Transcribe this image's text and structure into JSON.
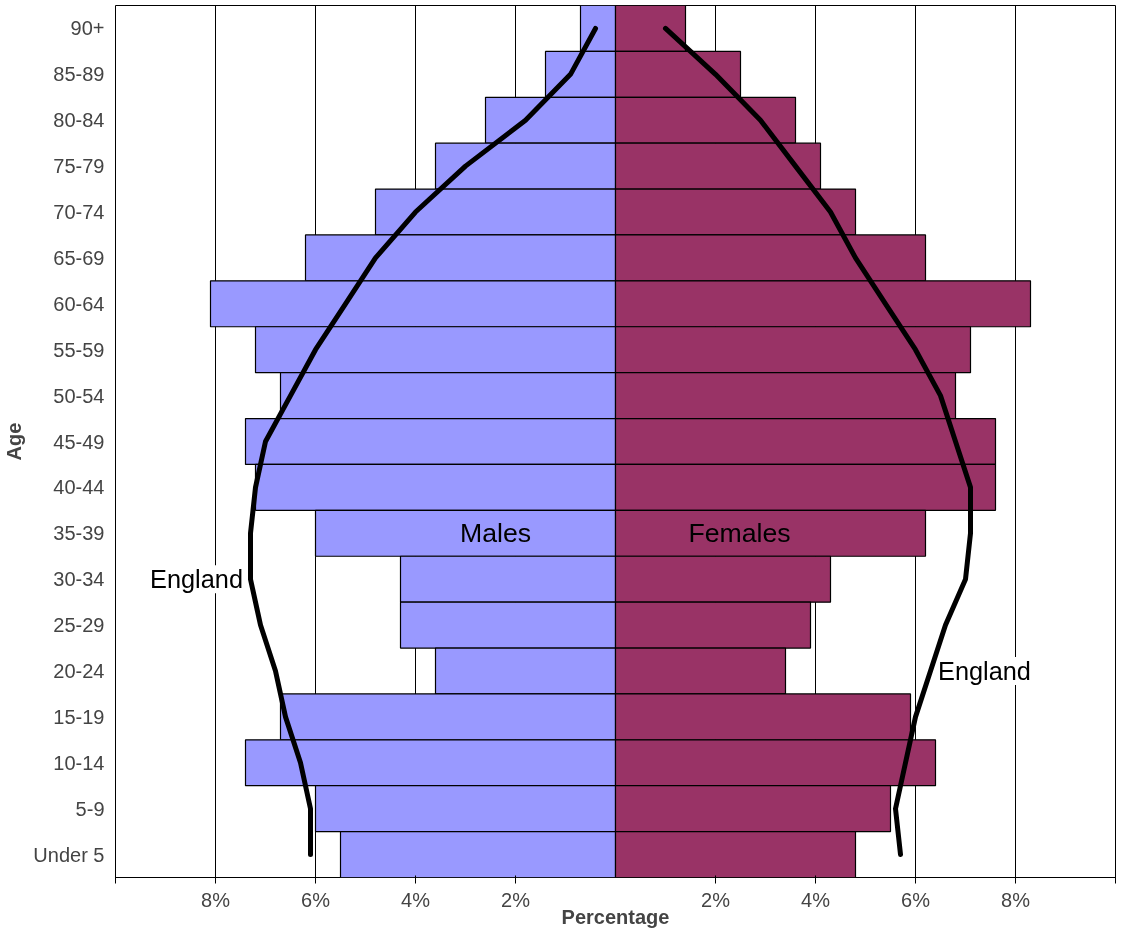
{
  "chart_data": {
    "type": "bar",
    "orientation": "horizontal",
    "xlabel": "Percentage",
    "ylabel": "Age",
    "grid": "x",
    "xlim": [
      -10,
      10
    ],
    "xticks": [
      {
        "value": -10,
        "label": null
      },
      {
        "value": -8,
        "label": "8%"
      },
      {
        "value": -6,
        "label": "6%"
      },
      {
        "value": -4,
        "label": "4%"
      },
      {
        "value": -2,
        "label": "2%"
      },
      {
        "value": 2,
        "label": "2%"
      },
      {
        "value": 4,
        "label": "4%"
      },
      {
        "value": 6,
        "label": "6%"
      },
      {
        "value": 8,
        "label": "8%"
      },
      {
        "value": 10,
        "label": null
      }
    ],
    "categories": [
      "90+",
      "85-89",
      "80-84",
      "75-79",
      "70-74",
      "65-69",
      "60-64",
      "55-59",
      "50-54",
      "45-49",
      "40-44",
      "35-39",
      "30-34",
      "25-29",
      "20-24",
      "15-19",
      "10-14",
      "5-9",
      "Under 5"
    ],
    "series": [
      {
        "name": "Males",
        "color": "#9999ff",
        "values": [
          -0.7,
          -1.4,
          -2.6,
          -3.6,
          -4.8,
          -6.2,
          -8.1,
          -7.2,
          -6.7,
          -7.4,
          -7.2,
          -6.0,
          -4.3,
          -4.3,
          -3.6,
          -6.7,
          -7.4,
          -6.0,
          -5.5
        ]
      },
      {
        "name": "Females",
        "color": "#993366",
        "values": [
          1.4,
          2.5,
          3.6,
          4.1,
          4.8,
          6.2,
          8.3,
          7.1,
          6.8,
          7.6,
          7.6,
          6.2,
          4.3,
          3.9,
          3.4,
          5.9,
          6.4,
          5.5,
          4.8
        ]
      },
      {
        "type": "line",
        "name": "England",
        "color": "#000000",
        "values": [
          -0.4,
          -0.9,
          -1.8,
          -3.0,
          -4.0,
          -4.8,
          -5.4,
          -6.0,
          -6.5,
          -7.0,
          -7.2,
          -7.3,
          -7.3,
          -7.1,
          -6.8,
          -6.6,
          -6.3,
          -6.1,
          -6.1
        ]
      },
      {
        "type": "line",
        "name": "England",
        "color": "#000000",
        "values": [
          1.0,
          2.0,
          2.9,
          3.6,
          4.3,
          4.8,
          5.4,
          6.0,
          6.5,
          6.8,
          7.1,
          7.1,
          7.0,
          6.6,
          6.3,
          6.0,
          5.8,
          5.6,
          5.7
        ]
      }
    ],
    "stacked": true
  }
}
